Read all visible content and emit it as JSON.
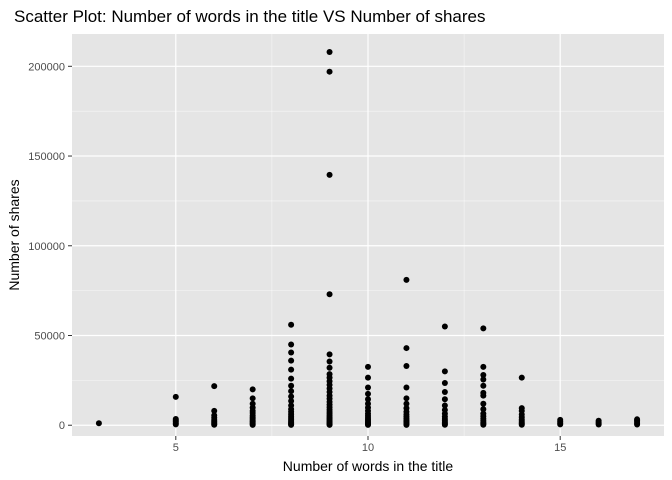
{
  "chart_data": {
    "type": "scatter",
    "title": "Scatter Plot: Number of words in the title VS Number of shares",
    "xlabel": "Number of words in the title",
    "ylabel": "Number of shares",
    "xlim": [
      2.3,
      17.7
    ],
    "ylim": [
      -6000,
      218000
    ],
    "x_ticks": [
      5,
      10,
      15
    ],
    "y_ticks": [
      0,
      50000,
      100000,
      150000,
      200000
    ],
    "x_tick_labels": [
      "5",
      "10",
      "15"
    ],
    "y_tick_labels": [
      "0",
      "50000",
      "100000",
      "150000",
      "200000"
    ],
    "grid": true,
    "background": "#e5e5e5",
    "grid_color": "#ffffff",
    "point_color": "#000000",
    "points": [
      [
        3,
        1100
      ],
      [
        5,
        500
      ],
      [
        5,
        1200
      ],
      [
        5,
        2000
      ],
      [
        5,
        2800
      ],
      [
        5,
        3500
      ],
      [
        5,
        15800
      ],
      [
        6,
        300
      ],
      [
        6,
        800
      ],
      [
        6,
        1500
      ],
      [
        6,
        2200
      ],
      [
        6,
        3000
      ],
      [
        6,
        4200
      ],
      [
        6,
        5500
      ],
      [
        6,
        8000
      ],
      [
        6,
        21800
      ],
      [
        7,
        200
      ],
      [
        7,
        700
      ],
      [
        7,
        1300
      ],
      [
        7,
        2000
      ],
      [
        7,
        2800
      ],
      [
        7,
        3600
      ],
      [
        7,
        4500
      ],
      [
        7,
        5500
      ],
      [
        7,
        6800
      ],
      [
        7,
        8000
      ],
      [
        7,
        9800
      ],
      [
        7,
        12000
      ],
      [
        7,
        15000
      ],
      [
        7,
        20000
      ],
      [
        8,
        200
      ],
      [
        8,
        600
      ],
      [
        8,
        1100
      ],
      [
        8,
        1700
      ],
      [
        8,
        2400
      ],
      [
        8,
        3200
      ],
      [
        8,
        4000
      ],
      [
        8,
        5000
      ],
      [
        8,
        6200
      ],
      [
        8,
        7500
      ],
      [
        8,
        9000
      ],
      [
        8,
        11000
      ],
      [
        8,
        13500
      ],
      [
        8,
        16000
      ],
      [
        8,
        19000
      ],
      [
        8,
        22000
      ],
      [
        8,
        26000
      ],
      [
        8,
        31000
      ],
      [
        8,
        36000
      ],
      [
        8,
        40500
      ],
      [
        8,
        45000
      ],
      [
        8,
        56000
      ],
      [
        9,
        200
      ],
      [
        9,
        600
      ],
      [
        9,
        1100
      ],
      [
        9,
        1600
      ],
      [
        9,
        2200
      ],
      [
        9,
        2900
      ],
      [
        9,
        3600
      ],
      [
        9,
        4400
      ],
      [
        9,
        5300
      ],
      [
        9,
        6300
      ],
      [
        9,
        7400
      ],
      [
        9,
        8600
      ],
      [
        9,
        10000
      ],
      [
        9,
        11500
      ],
      [
        9,
        13000
      ],
      [
        9,
        14800
      ],
      [
        9,
        16500
      ],
      [
        9,
        18500
      ],
      [
        9,
        20500
      ],
      [
        9,
        22500
      ],
      [
        9,
        24500
      ],
      [
        9,
        26500
      ],
      [
        9,
        28500
      ],
      [
        9,
        32000
      ],
      [
        9,
        35500
      ],
      [
        9,
        39500
      ],
      [
        9,
        73000
      ],
      [
        9,
        139500
      ],
      [
        9,
        197000
      ],
      [
        9,
        208000
      ],
      [
        10,
        200
      ],
      [
        10,
        600
      ],
      [
        10,
        1100
      ],
      [
        10,
        1700
      ],
      [
        10,
        2400
      ],
      [
        10,
        3200
      ],
      [
        10,
        4100
      ],
      [
        10,
        5200
      ],
      [
        10,
        6500
      ],
      [
        10,
        8000
      ],
      [
        10,
        9800
      ],
      [
        10,
        12000
      ],
      [
        10,
        14500
      ],
      [
        10,
        17500
      ],
      [
        10,
        21000
      ],
      [
        10,
        26500
      ],
      [
        10,
        32500
      ],
      [
        11,
        200
      ],
      [
        11,
        700
      ],
      [
        11,
        1300
      ],
      [
        11,
        2000
      ],
      [
        11,
        2800
      ],
      [
        11,
        3700
      ],
      [
        11,
        4800
      ],
      [
        11,
        6000
      ],
      [
        11,
        7500
      ],
      [
        11,
        9500
      ],
      [
        11,
        12000
      ],
      [
        11,
        15000
      ],
      [
        11,
        21000
      ],
      [
        11,
        33000
      ],
      [
        11,
        43000
      ],
      [
        11,
        81000
      ],
      [
        12,
        300
      ],
      [
        12,
        900
      ],
      [
        12,
        1600
      ],
      [
        12,
        2500
      ],
      [
        12,
        3500
      ],
      [
        12,
        4800
      ],
      [
        12,
        6500
      ],
      [
        12,
        8500
      ],
      [
        12,
        11000
      ],
      [
        12,
        14500
      ],
      [
        12,
        18500
      ],
      [
        12,
        23500
      ],
      [
        12,
        30000
      ],
      [
        12,
        55000
      ],
      [
        13,
        300
      ],
      [
        13,
        900
      ],
      [
        13,
        1600
      ],
      [
        13,
        2500
      ],
      [
        13,
        3600
      ],
      [
        13,
        5000
      ],
      [
        13,
        6500
      ],
      [
        13,
        9000
      ],
      [
        13,
        12000
      ],
      [
        13,
        16500
      ],
      [
        13,
        18000
      ],
      [
        13,
        22000
      ],
      [
        13,
        25500
      ],
      [
        13,
        28000
      ],
      [
        13,
        32500
      ],
      [
        13,
        54000
      ],
      [
        14,
        300
      ],
      [
        14,
        900
      ],
      [
        14,
        1600
      ],
      [
        14,
        2400
      ],
      [
        14,
        3300
      ],
      [
        14,
        4500
      ],
      [
        14,
        6000
      ],
      [
        14,
        8000
      ],
      [
        14,
        9500
      ],
      [
        14,
        26500
      ],
      [
        15,
        500
      ],
      [
        15,
        1200
      ],
      [
        15,
        2000
      ],
      [
        15,
        3000
      ],
      [
        16,
        400
      ],
      [
        16,
        1000
      ],
      [
        16,
        1700
      ],
      [
        16,
        2500
      ],
      [
        17,
        400
      ],
      [
        17,
        1000
      ],
      [
        17,
        1800
      ],
      [
        17,
        2600
      ],
      [
        17,
        3300
      ]
    ]
  }
}
